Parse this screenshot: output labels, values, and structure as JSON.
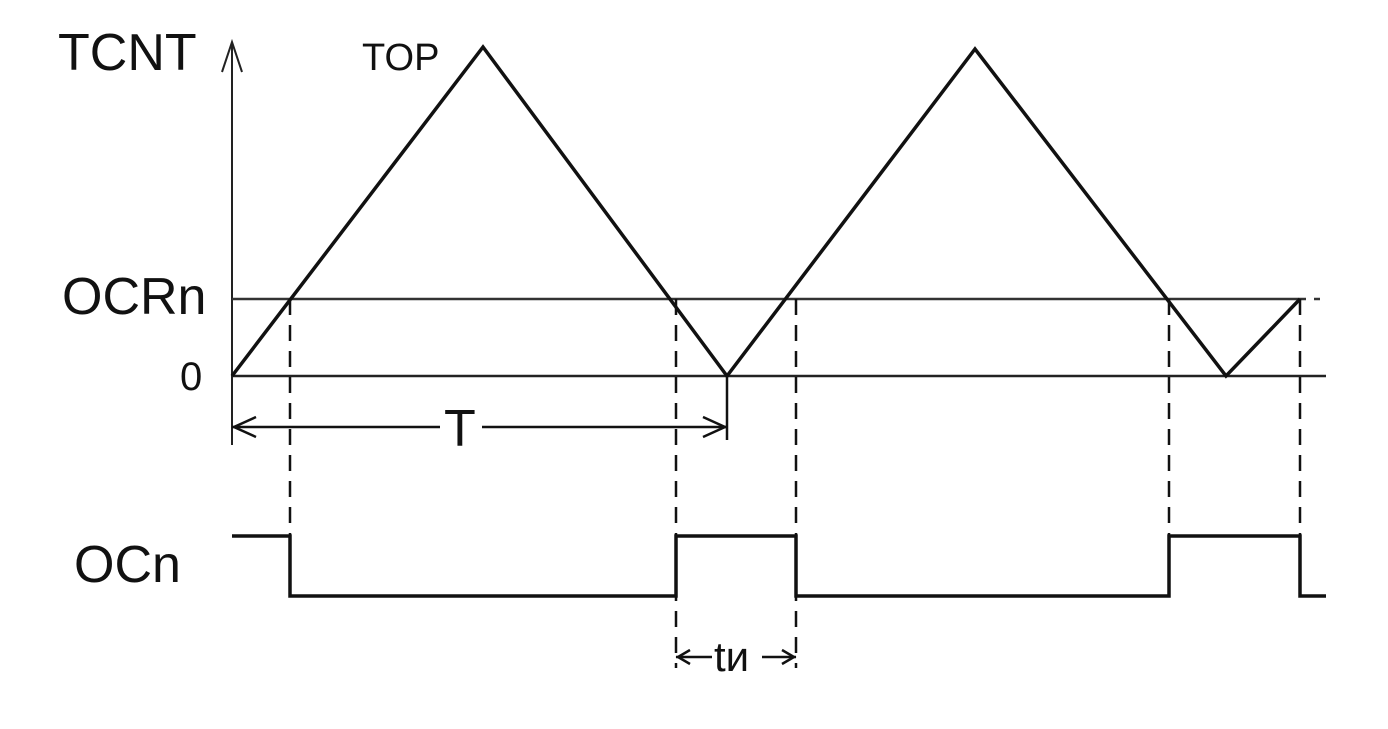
{
  "labels": {
    "y_axis": "TCNT",
    "top": "TOP",
    "ocr": "OCRn",
    "zero": "0",
    "period": "T",
    "output": "OCn",
    "pulse_width": "tи"
  },
  "colors": {
    "line": "#111111",
    "background": "#ffffff"
  }
}
